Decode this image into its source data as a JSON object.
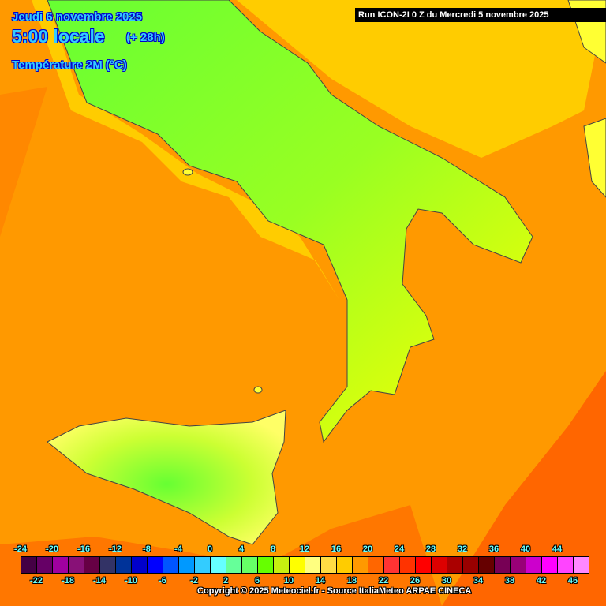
{
  "header": {
    "date": "Jeudi 6 novembre 2025",
    "time": "5:00 locale",
    "lead": "(+ 28h)",
    "parameter": "Température 2M (°C)",
    "run": "Run ICON-2I 0 Z du Mercredi 5 novembre 2025"
  },
  "colorbar": {
    "unit": "°C",
    "min": -24,
    "max": 48,
    "step": 2,
    "colors": [
      "#440044",
      "#660066",
      "#a000a0",
      "#881177",
      "#660044",
      "#333366",
      "#003399",
      "#0000cc",
      "#0000ff",
      "#0055ff",
      "#0099ff",
      "#33ccff",
      "#66ffff",
      "#66ff99",
      "#66ff66",
      "#66ff00",
      "#c6f010",
      "#ffff00",
      "#ffff80",
      "#ffdd44",
      "#ffcc00",
      "#ff9900",
      "#ff6600",
      "#ff3333",
      "#ff3300",
      "#ff0000",
      "#dd0000",
      "#aa0000",
      "#990000",
      "#660000",
      "#770055",
      "#990077",
      "#cc00cc",
      "#ff00ff",
      "#ff44ff",
      "#ff88ff"
    ],
    "top_labels": [
      "-24",
      "-20",
      "-16",
      "-12",
      "-8",
      "-4",
      "0",
      "4",
      "8",
      "12",
      "16",
      "20",
      "24",
      "28",
      "32",
      "36",
      "40",
      "44"
    ],
    "bottom_labels": [
      "-22",
      "-18",
      "-14",
      "-10",
      "-6",
      "-2",
      "2",
      "6",
      "10",
      "14",
      "18",
      "22",
      "26",
      "30",
      "34",
      "38",
      "42",
      "46"
    ]
  },
  "map": {
    "sea_color": "#ff9900",
    "coastal_sea_color": "#ffcc00",
    "warm_sea_color": "#ff6600",
    "lowland_color": "#ffff00",
    "inland_color": "#66ff00"
  },
  "footer": {
    "copyright": "Copyright © 2025 Meteociel.fr - Source ItaliaMeteo ARPAE CINECA"
  }
}
